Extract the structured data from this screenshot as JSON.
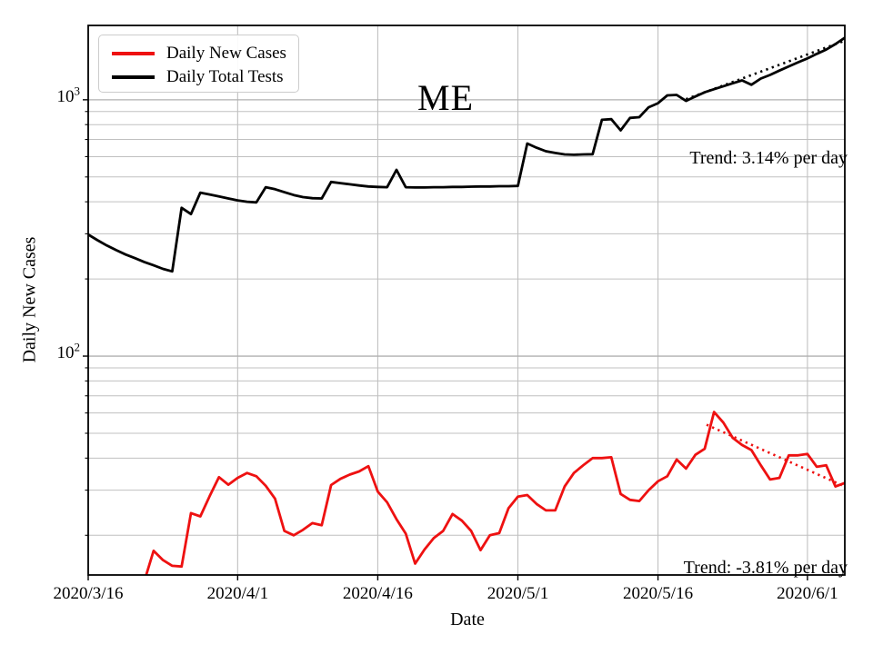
{
  "figure": {
    "title": "ME",
    "x_axis_label": "Date",
    "y_axis_label": "Daily New Cases",
    "background_color": "#ffffff",
    "axis_color": "#000000",
    "minor_grid_color": "#c0c0c0",
    "major_grid_color": "#b0b0b0"
  },
  "legend": {
    "items": [
      {
        "label": "Daily New Cases",
        "color": "#ee1111"
      },
      {
        "label": "Daily Total Tests",
        "color": "#000000"
      }
    ]
  },
  "annotations": {
    "tests_trend_label": "Trend: 3.14% per day",
    "cases_trend_label": "Trend: -3.81% per day"
  },
  "chart_data": {
    "type": "line",
    "title": "ME",
    "xlabel": "Date",
    "ylabel": "Daily New Cases",
    "x_axis": {
      "unit": "days since 2020/3/16",
      "range": [
        0,
        81
      ],
      "ticks": [
        {
          "day": 0,
          "label": "2020/3/16"
        },
        {
          "day": 16,
          "label": "2020/4/1"
        },
        {
          "day": 31,
          "label": "2020/4/16"
        },
        {
          "day": 46,
          "label": "2020/5/1"
        },
        {
          "day": 61,
          "label": "2020/5/16"
        },
        {
          "day": 77,
          "label": "2020/6/1"
        }
      ]
    },
    "y_axis": {
      "scale": "log",
      "range": [
        14,
        1950
      ],
      "major_ticks": [
        {
          "value": 100,
          "base": "10",
          "exp": "2"
        },
        {
          "value": 1000,
          "base": "10",
          "exp": "3"
        }
      ],
      "minor_gridlines": [
        20,
        30,
        40,
        50,
        60,
        70,
        80,
        90,
        200,
        300,
        400,
        500,
        600,
        700,
        800,
        900
      ]
    },
    "series": [
      {
        "name": "Daily New Cases",
        "color": "#ee1111",
        "style": "solid",
        "points": [
          [
            6,
            13.2
          ],
          [
            7,
            17.4
          ],
          [
            8,
            16
          ],
          [
            9,
            15.2
          ],
          [
            10,
            15.1
          ],
          [
            11,
            24.4
          ],
          [
            12,
            23.7
          ],
          [
            13,
            28.4
          ],
          [
            14,
            33.7
          ],
          [
            15,
            31.5
          ],
          [
            16,
            33.5
          ],
          [
            17,
            35
          ],
          [
            18,
            34
          ],
          [
            19,
            31.2
          ],
          [
            20,
            27.8
          ],
          [
            21,
            20.8
          ],
          [
            22,
            20
          ],
          [
            23,
            21
          ],
          [
            24,
            22.3
          ],
          [
            25,
            21.9
          ],
          [
            26,
            31.4
          ],
          [
            27,
            33.2
          ],
          [
            28,
            34.5
          ],
          [
            29,
            35.5
          ],
          [
            30,
            37.2
          ],
          [
            31,
            29.6
          ],
          [
            32,
            26.9
          ],
          [
            33,
            23.1
          ],
          [
            34,
            20.3
          ],
          [
            35,
            15.5
          ],
          [
            36,
            17.6
          ],
          [
            37,
            19.5
          ],
          [
            38,
            20.8
          ],
          [
            39,
            24.2
          ],
          [
            40,
            22.8
          ],
          [
            41,
            20.8
          ],
          [
            42,
            17.5
          ],
          [
            43,
            20
          ],
          [
            44,
            20.4
          ],
          [
            45,
            25.5
          ],
          [
            46,
            28.3
          ],
          [
            47,
            28.7
          ],
          [
            48,
            26.5
          ],
          [
            49,
            25
          ],
          [
            50,
            25
          ],
          [
            51,
            31
          ],
          [
            52,
            35
          ],
          [
            53,
            37.5
          ],
          [
            54,
            40
          ],
          [
            55,
            40
          ],
          [
            56,
            40.3
          ],
          [
            57,
            29
          ],
          [
            58,
            27.5
          ],
          [
            59,
            27.2
          ],
          [
            60,
            30
          ],
          [
            61,
            32.5
          ],
          [
            62,
            34
          ],
          [
            63,
            39.5
          ],
          [
            64,
            36.4
          ],
          [
            65,
            41.2
          ],
          [
            66,
            43.5
          ],
          [
            67,
            60.5
          ],
          [
            68,
            55
          ],
          [
            69,
            48
          ],
          [
            70,
            45
          ],
          [
            71,
            43
          ],
          [
            72,
            37.5
          ],
          [
            73,
            33
          ],
          [
            74,
            33.5
          ],
          [
            75,
            41
          ],
          [
            76,
            41
          ],
          [
            77,
            41.5
          ],
          [
            78,
            37
          ],
          [
            79,
            37.5
          ],
          [
            80,
            31
          ],
          [
            81,
            32
          ]
        ]
      },
      {
        "name": "Daily Total Tests",
        "color": "#000000",
        "style": "solid",
        "points": [
          [
            0,
            298
          ],
          [
            1,
            283
          ],
          [
            2,
            270
          ],
          [
            3,
            259
          ],
          [
            4,
            249
          ],
          [
            5,
            241
          ],
          [
            6,
            233
          ],
          [
            7,
            226
          ],
          [
            8,
            219
          ],
          [
            9,
            214
          ],
          [
            10,
            379
          ],
          [
            11,
            358
          ],
          [
            12,
            434
          ],
          [
            13,
            427
          ],
          [
            14,
            420
          ],
          [
            15,
            412
          ],
          [
            16,
            405
          ],
          [
            17,
            400
          ],
          [
            18,
            398
          ],
          [
            19,
            456
          ],
          [
            20,
            448
          ],
          [
            21,
            436
          ],
          [
            22,
            425
          ],
          [
            23,
            417
          ],
          [
            24,
            413
          ],
          [
            25,
            412
          ],
          [
            26,
            478
          ],
          [
            27,
            473
          ],
          [
            28,
            468
          ],
          [
            29,
            463
          ],
          [
            30,
            459
          ],
          [
            31,
            457
          ],
          [
            32,
            456
          ],
          [
            33,
            533
          ],
          [
            34,
            456
          ],
          [
            35,
            455
          ],
          [
            36,
            455
          ],
          [
            37,
            456
          ],
          [
            38,
            456
          ],
          [
            39,
            457
          ],
          [
            40,
            457
          ],
          [
            41,
            458
          ],
          [
            42,
            459
          ],
          [
            43,
            459
          ],
          [
            44,
            460
          ],
          [
            45,
            460
          ],
          [
            46,
            461
          ],
          [
            47,
            675
          ],
          [
            48,
            650
          ],
          [
            49,
            630
          ],
          [
            50,
            620
          ],
          [
            51,
            612
          ],
          [
            52,
            610
          ],
          [
            53,
            612
          ],
          [
            54,
            613
          ],
          [
            55,
            835
          ],
          [
            56,
            840
          ],
          [
            57,
            760
          ],
          [
            58,
            850
          ],
          [
            59,
            855
          ],
          [
            60,
            935
          ],
          [
            61,
            970
          ],
          [
            62,
            1040
          ],
          [
            63,
            1045
          ],
          [
            64,
            990
          ],
          [
            65,
            1030
          ],
          [
            66,
            1070
          ],
          [
            67,
            1100
          ],
          [
            68,
            1130
          ],
          [
            69,
            1160
          ],
          [
            70,
            1190
          ],
          [
            71,
            1145
          ],
          [
            72,
            1210
          ],
          [
            73,
            1250
          ],
          [
            74,
            1300
          ],
          [
            75,
            1350
          ],
          [
            76,
            1400
          ],
          [
            77,
            1450
          ],
          [
            78,
            1510
          ],
          [
            79,
            1570
          ],
          [
            80,
            1650
          ],
          [
            81,
            1745
          ]
        ]
      },
      {
        "name": "Tests trend +3.14% per day",
        "color": "#000000",
        "style": "dotted",
        "points": [
          [
            64,
            1005
          ],
          [
            81,
            1700
          ]
        ]
      },
      {
        "name": "Cases trend -3.81% per day",
        "color": "#ee1111",
        "style": "dotted",
        "points": [
          [
            66.2,
            54
          ],
          [
            81,
            31
          ]
        ]
      }
    ],
    "legend_position": "upper left",
    "grid": true
  }
}
